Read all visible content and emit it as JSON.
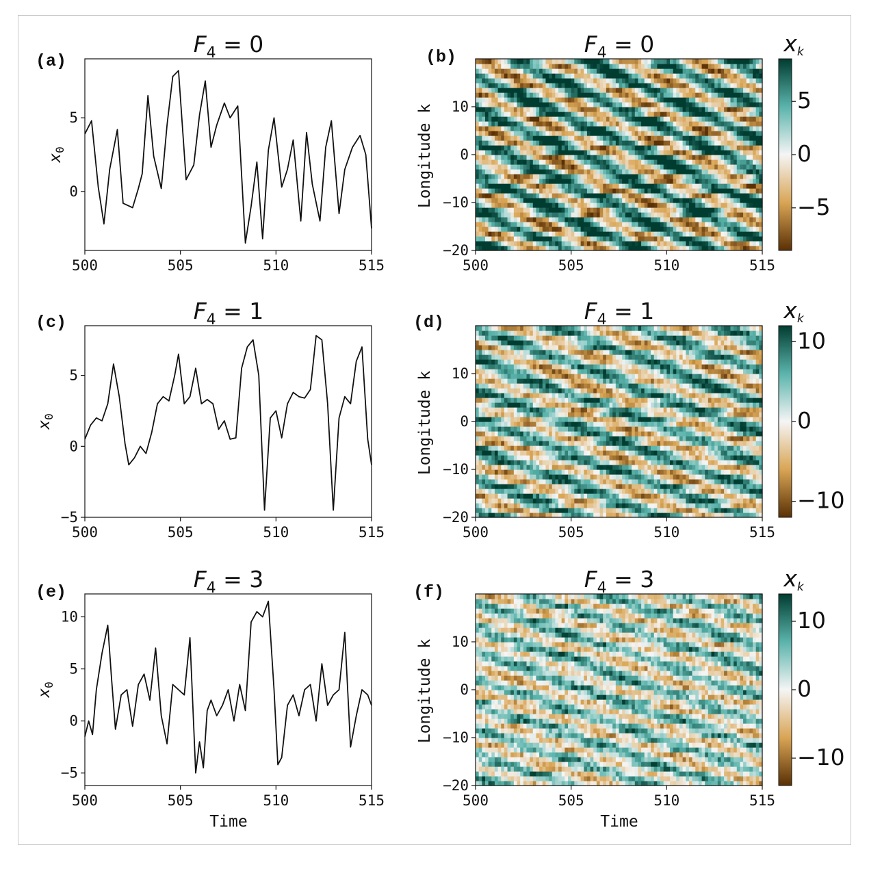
{
  "colors": {
    "low": "#5a3005",
    "mid_low": "#d9a555",
    "zero": "#f5f5f5",
    "mid_high": "#5ab4ac",
    "high": "#013c30",
    "line": "#111111"
  },
  "chart_data": [
    {
      "id": "a",
      "type": "line",
      "panel_label": "(a)",
      "title_var": "F",
      "title_sub": "4",
      "title_eq": " = 0",
      "xlabel": "",
      "ylabel": "x",
      "ylabel_sub": "0",
      "xlim": [
        500,
        515
      ],
      "ylim": [
        -4,
        9
      ],
      "xticks": [
        500,
        505,
        510,
        515
      ],
      "yticks": [
        0,
        5
      ],
      "series": [
        {
          "x": [
            500,
            500.35,
            500.7,
            501,
            501.3,
            501.7,
            502,
            502.5,
            502.8,
            503,
            503.3,
            503.6,
            504,
            504.3,
            504.6,
            504.9,
            505.3,
            505.7,
            506,
            506.3,
            506.6,
            506.9,
            507.3,
            507.6,
            508,
            508.4,
            508.7,
            509,
            509.3,
            509.6,
            509.9,
            510.3,
            510.6,
            510.9,
            511.3,
            511.6,
            511.9,
            512.3,
            512.6,
            512.9,
            513.3,
            513.6,
            514,
            514.4,
            514.7,
            515
          ],
          "values": [
            3.9,
            4.8,
            0.3,
            -2.2,
            1.5,
            4.2,
            -0.8,
            -1.1,
            0.2,
            1.2,
            6.5,
            2.4,
            0.2,
            4.5,
            7.8,
            8.2,
            0.8,
            1.8,
            5.2,
            7.5,
            3.0,
            4.5,
            6.0,
            5.0,
            5.8,
            -3.5,
            -1.0,
            2.0,
            -3.2,
            2.8,
            5.0,
            0.3,
            1.5,
            3.5,
            -2.0,
            4.0,
            0.5,
            -2.0,
            3.0,
            4.8,
            -1.5,
            1.5,
            3.0,
            3.8,
            2.5,
            -2.5
          ]
        }
      ]
    },
    {
      "id": "b",
      "type": "heatmap",
      "panel_label": "(b)",
      "title_var": "F",
      "title_sub": "4",
      "title_eq": " = 0",
      "xlabel": "",
      "ylabel": "Longitude k",
      "xlim": [
        500,
        515
      ],
      "ylim": [
        -20,
        20
      ],
      "xticks": [
        500,
        505,
        510,
        515
      ],
      "yticks": [
        -20,
        -10,
        0,
        10
      ],
      "colorbar": {
        "label": "x",
        "label_sub": "k",
        "range": [
          -9,
          9
        ],
        "ticks": [
          -5,
          0,
          5
        ]
      },
      "field": {
        "rows": 40,
        "cols": 90,
        "speed": 1.4,
        "wavenumber": 0.9,
        "amplitude": 7.5,
        "noise": 0.25,
        "seed": 7
      }
    },
    {
      "id": "c",
      "type": "line",
      "panel_label": "(c)",
      "title_var": "F",
      "title_sub": "4",
      "title_eq": " = 1",
      "xlabel": "",
      "ylabel": "x",
      "ylabel_sub": "0",
      "xlim": [
        500,
        515
      ],
      "ylim": [
        -5,
        8.5
      ],
      "xticks": [
        500,
        505,
        510,
        515
      ],
      "yticks": [
        -5,
        0,
        5
      ],
      "series": [
        {
          "x": [
            500,
            500.3,
            500.6,
            500.9,
            501.2,
            501.5,
            501.8,
            502.1,
            502.3,
            502.6,
            502.9,
            503.2,
            503.5,
            503.8,
            504.1,
            504.4,
            504.7,
            504.9,
            505.2,
            505.5,
            505.8,
            506.1,
            506.4,
            506.7,
            507.0,
            507.3,
            507.6,
            507.9,
            508.2,
            508.5,
            508.8,
            509.1,
            509.4,
            509.7,
            510.0,
            510.3,
            510.6,
            510.9,
            511.2,
            511.5,
            511.8,
            512.1,
            512.4,
            512.7,
            513.0,
            513.3,
            513.6,
            513.9,
            514.2,
            514.5,
            514.8,
            515
          ],
          "values": [
            0.5,
            1.5,
            2.0,
            1.8,
            3.0,
            5.8,
            3.5,
            0.2,
            -1.3,
            -0.8,
            0.0,
            -0.5,
            1.0,
            3.0,
            3.5,
            3.2,
            5.0,
            6.5,
            3.0,
            3.5,
            5.5,
            3.0,
            3.3,
            3.0,
            1.2,
            1.8,
            0.5,
            0.6,
            5.5,
            7.0,
            7.5,
            5.0,
            -4.5,
            2.0,
            2.5,
            0.6,
            3.0,
            3.8,
            3.5,
            3.4,
            4.0,
            7.8,
            7.5,
            3.0,
            -4.5,
            2.0,
            3.5,
            3.0,
            6.0,
            7.0,
            0.5,
            -1.3
          ]
        }
      ]
    },
    {
      "id": "d",
      "type": "heatmap",
      "panel_label": "(d)",
      "title_var": "F",
      "title_sub": "4",
      "title_eq": " = 1",
      "xlabel": "",
      "ylabel": "Longitude k",
      "xlim": [
        500,
        515
      ],
      "ylim": [
        -20,
        20
      ],
      "xticks": [
        500,
        505,
        510,
        515
      ],
      "yticks": [
        -20,
        -10,
        0,
        10
      ],
      "colorbar": {
        "label": "x",
        "label_sub": "k",
        "range": [
          -12,
          12
        ],
        "ticks": [
          -10,
          0,
          10
        ]
      },
      "field": {
        "rows": 40,
        "cols": 90,
        "speed": 1.1,
        "wavenumber": 1.0,
        "amplitude": 8.0,
        "noise": 0.35,
        "seed": 19
      }
    },
    {
      "id": "e",
      "type": "line",
      "panel_label": "(e)",
      "title_var": "F",
      "title_sub": "4",
      "title_eq": " = 3",
      "xlabel": "Time",
      "ylabel": "x",
      "ylabel_sub": "0",
      "xlim": [
        500,
        515
      ],
      "ylim": [
        -6.2,
        12.2
      ],
      "xticks": [
        500,
        505,
        510,
        515
      ],
      "yticks": [
        -5,
        0,
        5,
        10
      ],
      "series": [
        {
          "x": [
            500,
            500.2,
            500.4,
            500.6,
            500.9,
            501.2,
            501.4,
            501.6,
            501.9,
            502.2,
            502.5,
            502.8,
            503.1,
            503.4,
            503.7,
            504.0,
            504.3,
            504.6,
            504.9,
            505.2,
            505.5,
            505.8,
            506.0,
            506.2,
            506.4,
            506.6,
            506.9,
            507.2,
            507.5,
            507.8,
            508.1,
            508.4,
            508.7,
            509.0,
            509.3,
            509.6,
            509.9,
            510.1,
            510.3,
            510.6,
            510.9,
            511.2,
            511.5,
            511.8,
            512.1,
            512.4,
            512.7,
            513.0,
            513.3,
            513.6,
            513.9,
            514.2,
            514.5,
            514.8,
            515
          ],
          "values": [
            -1.5,
            0.0,
            -1.3,
            3.0,
            6.5,
            9.2,
            4.0,
            -0.8,
            2.5,
            3.0,
            -0.5,
            3.5,
            4.5,
            2.0,
            7.0,
            0.5,
            -2.2,
            3.5,
            3.0,
            2.5,
            8.0,
            -5.0,
            -2.0,
            -4.5,
            1.0,
            2.0,
            0.5,
            1.5,
            3.0,
            0.0,
            3.5,
            1.0,
            9.5,
            10.5,
            10.0,
            11.5,
            3.0,
            -4.2,
            -3.5,
            1.5,
            2.5,
            0.5,
            3.0,
            3.5,
            0.0,
            5.5,
            1.5,
            2.5,
            3.0,
            8.5,
            -2.5,
            0.5,
            3.0,
            2.5,
            1.5
          ]
        }
      ]
    },
    {
      "id": "f",
      "type": "heatmap",
      "panel_label": "(f)",
      "title_var": "F",
      "title_sub": "4",
      "title_eq": " = 3",
      "xlabel": "Time",
      "ylabel": "Longitude k",
      "xlim": [
        500,
        515
      ],
      "ylim": [
        -20,
        20
      ],
      "xticks": [
        500,
        505,
        510,
        515
      ],
      "yticks": [
        -20,
        -10,
        0,
        10
      ],
      "colorbar": {
        "label": "x",
        "label_sub": "k",
        "range": [
          -14,
          14
        ],
        "ticks": [
          -10,
          0,
          10
        ]
      },
      "field": {
        "rows": 40,
        "cols": 90,
        "speed": 1.0,
        "wavenumber": 1.2,
        "amplitude": 7.0,
        "noise": 0.55,
        "seed": 31
      }
    }
  ]
}
